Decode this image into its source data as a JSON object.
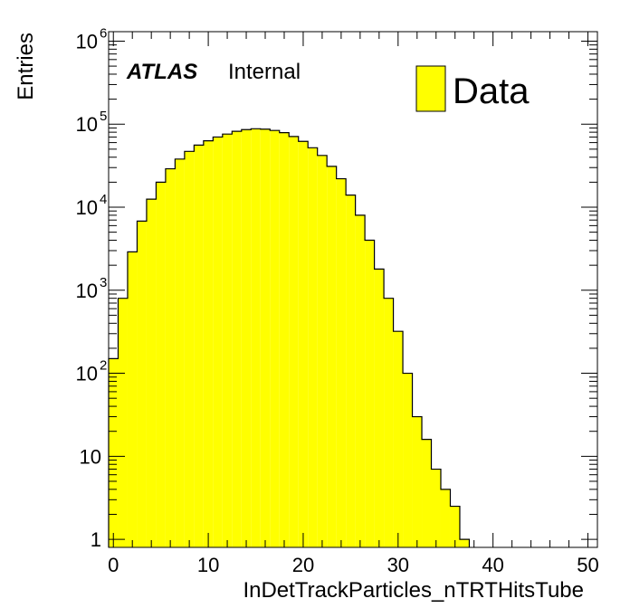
{
  "chart_data": {
    "type": "bar",
    "style": "histogram-step-filled",
    "xlabel": "InDetTrackParticles_nTRTHitsTube",
    "ylabel": "Entries",
    "ylog": true,
    "xlim": [
      -0.5,
      51
    ],
    "ylim": [
      0.8,
      1300000
    ],
    "x_ticks": [
      "0",
      "10",
      "20",
      "30",
      "40",
      "50"
    ],
    "x_tick_values": [
      0,
      10,
      20,
      30,
      40,
      50
    ],
    "y_ticks": [
      {
        "value": 1,
        "base": "1",
        "exp": ""
      },
      {
        "value": 10,
        "base": "10",
        "exp": ""
      },
      {
        "value": 100,
        "base": "10",
        "exp": "2"
      },
      {
        "value": 1000,
        "base": "10",
        "exp": "3"
      },
      {
        "value": 10000,
        "base": "10",
        "exp": "4"
      },
      {
        "value": 100000,
        "base": "10",
        "exp": "5"
      },
      {
        "value": 1000000,
        "base": "10",
        "exp": "6"
      }
    ],
    "bin_width": 1,
    "bin_lows": [
      -0.5,
      0.5,
      1.5,
      2.5,
      3.5,
      4.5,
      5.5,
      6.5,
      7.5,
      8.5,
      9.5,
      10.5,
      11.5,
      12.5,
      13.5,
      14.5,
      15.5,
      16.5,
      17.5,
      18.5,
      19.5,
      20.5,
      21.5,
      22.5,
      23.5,
      24.5,
      25.5,
      26.5,
      27.5,
      28.5,
      29.5,
      30.5,
      31.5,
      32.5,
      33.5,
      34.5,
      35.5,
      36.5
    ],
    "values": [
      150,
      800,
      2900,
      6800,
      12500,
      20000,
      29000,
      38000,
      47000,
      56000,
      63000,
      70000,
      76000,
      82000,
      86000,
      88000,
      87000,
      84000,
      79000,
      71000,
      62000,
      52000,
      42000,
      31000,
      22000,
      14000,
      8000,
      4000,
      1800,
      800,
      320,
      100,
      30,
      16,
      7,
      4,
      2.5,
      1
    ],
    "series": [
      {
        "name": "Data",
        "color": "#ffff00"
      }
    ],
    "legend_position": "top-right",
    "grid": false
  },
  "annotation": {
    "experiment": "ATLAS",
    "status": "Internal"
  },
  "legend": {
    "label": "Data",
    "fill": "#ffff00",
    "edge": "#000000"
  }
}
